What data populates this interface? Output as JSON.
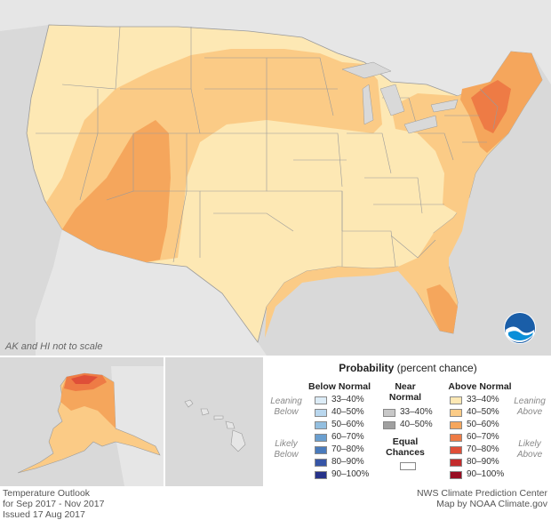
{
  "map_note": "AK and HI not to scale",
  "logo_text": "NOAA",
  "footer_left": {
    "line1": "Temperature Outlook",
    "line2": "for Sep 2017 - Nov 2017",
    "line3": "Issued 17 Aug 2017"
  },
  "footer_right": {
    "line1": "NWS Climate Prediction Center",
    "line2": "Map by NOAA Climate.gov"
  },
  "legend": {
    "title_bold": "Probability",
    "title_rest": " (percent chance)",
    "below_header": "Below Normal",
    "near_header_1": "Near",
    "near_header_2": "Normal",
    "above_header": "Above Normal",
    "leaning_below_1": "Leaning",
    "leaning_below_2": "Below",
    "likely_below_1": "Likely",
    "likely_below_2": "Below",
    "leaning_above_1": "Leaning",
    "leaning_above_2": "Above",
    "likely_above_1": "Likely",
    "likely_above_2": "Above",
    "equal_1": "Equal",
    "equal_2": "Chances",
    "below_items": [
      {
        "label": "33–40%",
        "color": "#dcecf7"
      },
      {
        "label": "40–50%",
        "color": "#b9d7ee"
      },
      {
        "label": "50–60%",
        "color": "#93bfe0"
      },
      {
        "label": "60–70%",
        "color": "#6a9fcf"
      },
      {
        "label": "70–80%",
        "color": "#4a7bbc"
      },
      {
        "label": "80–90%",
        "color": "#3655a6"
      },
      {
        "label": "90–100%",
        "color": "#27338a"
      }
    ],
    "near_items": [
      {
        "label": "33–40%",
        "color": "#c8c8c8"
      },
      {
        "label": "40–50%",
        "color": "#a0a0a0"
      }
    ],
    "above_items": [
      {
        "label": "33–40%",
        "color": "#fde8b4"
      },
      {
        "label": "40–50%",
        "color": "#fbcb86"
      },
      {
        "label": "50–60%",
        "color": "#f5a65c"
      },
      {
        "label": "60–70%",
        "color": "#ee7b45"
      },
      {
        "label": "70–80%",
        "color": "#df4f38"
      },
      {
        "label": "80–90%",
        "color": "#c32b2c"
      },
      {
        "label": "90–100%",
        "color": "#980d22"
      }
    ],
    "equal_color": "#ffffff"
  },
  "map_colors": {
    "background": "#d9d9d9",
    "ocean": "#d9d9d9",
    "land_outside": "#e8e8e8",
    "c33_40": "#fde8b4",
    "c40_50": "#fbcb86",
    "c50_60": "#f5a65c",
    "c60_70": "#ee7b45",
    "c70_80": "#df4f38",
    "state_lines": "#9a9a9a"
  }
}
